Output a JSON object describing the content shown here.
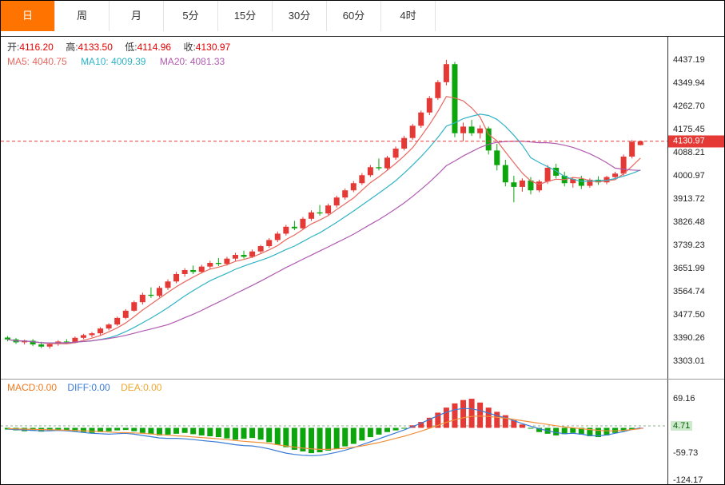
{
  "tabs": {
    "items": [
      {
        "label": "日",
        "active": true
      },
      {
        "label": "周",
        "active": false
      },
      {
        "label": "月",
        "active": false
      },
      {
        "label": "5分",
        "active": false
      },
      {
        "label": "15分",
        "active": false
      },
      {
        "label": "30分",
        "active": false
      },
      {
        "label": "60分",
        "active": false
      },
      {
        "label": "4时",
        "active": false
      }
    ]
  },
  "ohlc_bar": {
    "open_label": "开:",
    "open": "4116.20",
    "high_label": "高:",
    "high": "4133.50",
    "low_label": "低:",
    "low": "4114.96",
    "close_label": "收:",
    "close": "4130.97"
  },
  "ma_bar": {
    "ma5": "MA5: 4040.75",
    "ma10": "MA10: 4009.39",
    "ma20": "MA20: 4081.33"
  },
  "macd_bar": {
    "macd": "MACD:0.00",
    "diff": "DIFF:0.00",
    "dea": "DEA:0.00"
  },
  "colors": {
    "up": "#e53935",
    "down": "#0ca50c",
    "ma5": "#e8685f",
    "ma10": "#2fb3c6",
    "ma20": "#b05ab0",
    "diff_line": "#3a7bd5",
    "dea_line": "#f0913a",
    "macd_label": "#f07a20",
    "diff_label": "#3a7bd5",
    "dea_label": "#f0a830",
    "tab_active_bg": "#ff7300",
    "tab_active_text": "#ffffff",
    "price_tag_bg": "#e53935",
    "baseline_tag_bg": "#cdeacd",
    "value_text": "#e60000"
  },
  "chart_data": [
    {
      "type": "candlestick",
      "title": "",
      "grid": false,
      "y_axis_labels": [
        "4437.19",
        "4349.94",
        "4262.70",
        "4175.45",
        "4088.21",
        "4000.97",
        "3913.72",
        "3826.48",
        "3739.23",
        "3651.99",
        "3564.74",
        "3477.50",
        "3390.26",
        "3303.01"
      ],
      "y_range": [
        3237,
        4524
      ],
      "current_price": 4130.97,
      "current_price_label": "4130.97",
      "ma_periods": [
        5,
        10,
        20
      ],
      "candles": [
        [
          3392,
          3398,
          3378,
          3385
        ],
        [
          3385,
          3390,
          3368,
          3374
        ],
        [
          3374,
          3384,
          3366,
          3380
        ],
        [
          3380,
          3386,
          3360,
          3366
        ],
        [
          3366,
          3376,
          3352,
          3358
        ],
        [
          3358,
          3372,
          3350,
          3367
        ],
        [
          3367,
          3382,
          3361,
          3377
        ],
        [
          3377,
          3386,
          3368,
          3372
        ],
        [
          3372,
          3396,
          3370,
          3391
        ],
        [
          3391,
          3406,
          3386,
          3401
        ],
        [
          3401,
          3413,
          3393,
          3408
        ],
        [
          3408,
          3431,
          3401,
          3426
        ],
        [
          3426,
          3446,
          3419,
          3441
        ],
        [
          3441,
          3471,
          3436,
          3466
        ],
        [
          3466,
          3499,
          3461,
          3493
        ],
        [
          3493,
          3531,
          3489,
          3525
        ],
        [
          3525,
          3561,
          3516,
          3553
        ],
        [
          3553,
          3581,
          3541,
          3549
        ],
        [
          3549,
          3586,
          3543,
          3579
        ],
        [
          3579,
          3611,
          3571,
          3603
        ],
        [
          3603,
          3639,
          3596,
          3631
        ],
        [
          3631,
          3653,
          3621,
          3646
        ],
        [
          3646,
          3663,
          3631,
          3639
        ],
        [
          3639,
          3666,
          3633,
          3659
        ],
        [
          3659,
          3681,
          3651,
          3673
        ],
        [
          3673,
          3691,
          3661,
          3669
        ],
        [
          3669,
          3696,
          3663,
          3689
        ],
        [
          3689,
          3711,
          3681,
          3703
        ],
        [
          3703,
          3719,
          3689,
          3696
        ],
        [
          3696,
          3723,
          3691,
          3716
        ],
        [
          3716,
          3741,
          3709,
          3736
        ],
        [
          3736,
          3766,
          3729,
          3759
        ],
        [
          3759,
          3791,
          3751,
          3783
        ],
        [
          3783,
          3816,
          3776,
          3809
        ],
        [
          3809,
          3831,
          3796,
          3803
        ],
        [
          3803,
          3846,
          3799,
          3839
        ],
        [
          3839,
          3871,
          3831,
          3863
        ],
        [
          3863,
          3891,
          3851,
          3859
        ],
        [
          3859,
          3896,
          3853,
          3889
        ],
        [
          3889,
          3926,
          3881,
          3919
        ],
        [
          3919,
          3953,
          3911,
          3946
        ],
        [
          3946,
          3981,
          3939,
          3973
        ],
        [
          3973,
          4011,
          3966,
          4003
        ],
        [
          4003,
          4041,
          3996,
          4033
        ],
        [
          4033,
          4066,
          4021,
          4029
        ],
        [
          4029,
          4076,
          4023,
          4069
        ],
        [
          4069,
          4111,
          4061,
          4103
        ],
        [
          4103,
          4151,
          4096,
          4143
        ],
        [
          4143,
          4196,
          4136,
          4189
        ],
        [
          4189,
          4246,
          4181,
          4239
        ],
        [
          4239,
          4301,
          4229,
          4293
        ],
        [
          4293,
          4361,
          4286,
          4353
        ],
        [
          4353,
          4437,
          4341,
          4421
        ],
        [
          4421,
          4429,
          4146,
          4161
        ],
        [
          4161,
          4201,
          4131,
          4186
        ],
        [
          4186,
          4211,
          4151,
          4161
        ],
        [
          4161,
          4191,
          4141,
          4179
        ],
        [
          4179,
          4186,
          4081,
          4096
        ],
        [
          4096,
          4121,
          4021,
          4041
        ],
        [
          4041,
          4061,
          3961,
          3976
        ],
        [
          3976,
          4001,
          3901,
          3959
        ],
        [
          3959,
          3991,
          3941,
          3983
        ],
        [
          3983,
          3996,
          3931,
          3946
        ],
        [
          3946,
          3986,
          3939,
          3979
        ],
        [
          3979,
          4041,
          3971,
          4031
        ],
        [
          4031,
          4046,
          3991,
          4001
        ],
        [
          4001,
          4016,
          3961,
          3973
        ],
        [
          3973,
          3996,
          3956,
          3989
        ],
        [
          3989,
          4001,
          3951,
          3963
        ],
        [
          3963,
          3991,
          3956,
          3986
        ],
        [
          3986,
          3999,
          3966,
          3976
        ],
        [
          3976,
          4001,
          3969,
          3996
        ],
        [
          3996,
          4016,
          3986,
          4009
        ],
        [
          4009,
          4081,
          4001,
          4073
        ],
        [
          4073,
          4136,
          4066,
          4129
        ],
        [
          4116.2,
          4133.5,
          4114.96,
          4130.97
        ]
      ]
    },
    {
      "type": "bar",
      "name": "MACD",
      "y_axis_labels": [
        "69.16",
        "4.71",
        "-59.73",
        "-124.17"
      ],
      "y_range": [
        -135.6,
        114.6
      ],
      "baseline": 4.71,
      "baseline_label": "4.71",
      "hist": [
        -4,
        -6,
        -8,
        -7,
        -9,
        -6,
        -5,
        -7,
        -8,
        -10,
        -12,
        -10,
        -8,
        -6,
        -5,
        -8,
        -12,
        -15,
        -18,
        -16,
        -14,
        -12,
        -15,
        -18,
        -20,
        -22,
        -25,
        -28,
        -26,
        -24,
        -28,
        -34,
        -40,
        -46,
        -52,
        -56,
        -60,
        -58,
        -54,
        -50,
        -44,
        -38,
        -30,
        -22,
        -16,
        -10,
        -6,
        -2,
        6,
        14,
        24,
        36,
        48,
        58,
        66,
        69,
        60,
        48,
        38,
        30,
        18,
        8,
        -2,
        -10,
        -14,
        -18,
        -15,
        -12,
        -16,
        -20,
        -22,
        -18,
        -12,
        -8,
        -4,
        0
      ],
      "diff": [
        -3,
        -4,
        -5,
        -6,
        -7,
        -7,
        -6,
        -7,
        -9,
        -11,
        -13,
        -14,
        -15,
        -14,
        -13,
        -15,
        -18,
        -21,
        -24,
        -25,
        -25,
        -26,
        -28,
        -30,
        -32,
        -34,
        -37,
        -40,
        -42,
        -43,
        -46,
        -50,
        -55,
        -60,
        -63,
        -65,
        -66,
        -65,
        -62,
        -58,
        -53,
        -47,
        -40,
        -33,
        -26,
        -19,
        -12,
        -5,
        3,
        11,
        20,
        29,
        37,
        43,
        46,
        45,
        41,
        35,
        29,
        24,
        17,
        10,
        4,
        -2,
        -7,
        -11,
        -14,
        -13,
        -15,
        -18,
        -19,
        -17,
        -13,
        -9,
        -4,
        0
      ],
      "dea": [
        -2,
        -2.5,
        -3,
        -3.5,
        -4,
        -4.5,
        -5,
        -5.5,
        -6,
        -7,
        -8,
        -9,
        -10,
        -11,
        -11.5,
        -12,
        -13,
        -14.5,
        -16,
        -17.5,
        -19,
        -20,
        -21.5,
        -23,
        -24.5,
        -26,
        -28,
        -30,
        -32,
        -33.5,
        -35,
        -37,
        -40,
        -43,
        -46,
        -48,
        -50,
        -51,
        -51,
        -50,
        -48.5,
        -46,
        -43,
        -39,
        -35,
        -30,
        -25,
        -20,
        -14,
        -8,
        -1,
        6,
        13,
        19,
        24,
        27,
        28,
        27,
        25,
        23,
        20,
        17,
        14,
        11,
        8,
        5,
        2,
        0,
        -2,
        -4,
        -6,
        -7,
        -7,
        -6,
        -4,
        -2
      ]
    }
  ]
}
